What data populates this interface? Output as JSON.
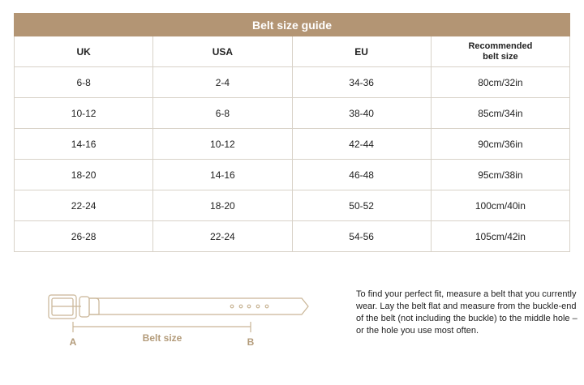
{
  "accent_color": "#b39574",
  "table": {
    "title": "Belt size guide",
    "headers": [
      "UK",
      "USA",
      "EU",
      "Recommended belt size"
    ],
    "rows": [
      [
        "6-8",
        "2-4",
        "34-36",
        "80cm/32in"
      ],
      [
        "10-12",
        "6-8",
        "38-40",
        "85cm/34in"
      ],
      [
        "14-16",
        "10-12",
        "42-44",
        "90cm/36in"
      ],
      [
        "18-20",
        "14-16",
        "46-48",
        "95cm/38in"
      ],
      [
        "22-24",
        "18-20",
        "50-52",
        "100cm/40in"
      ],
      [
        "26-28",
        "22-24",
        "54-56",
        "105cm/42in"
      ]
    ]
  },
  "diagram": {
    "label_a": "A",
    "label_b": "B",
    "measure_label": "Belt size"
  },
  "instructions": "To find your perfect fit, measure a belt that you currently wear. Lay the belt flat and measure from the buckle-end of the belt (not including the buckle) to the middle hole – or the hole you use most often."
}
